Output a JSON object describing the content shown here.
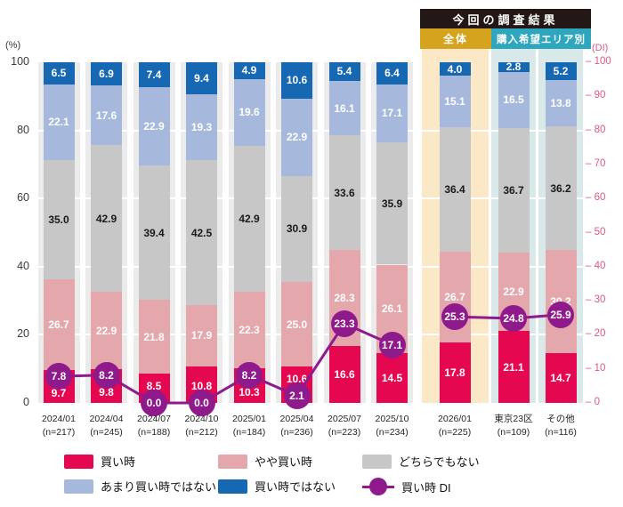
{
  "header": {
    "title": "今回の調査結果",
    "sub_left": "全体",
    "sub_right": "購入希望エリア別"
  },
  "axes": {
    "left_unit": "(%)",
    "left_ticks": [
      100,
      80,
      60,
      40,
      20,
      0
    ],
    "right_unit": "(DI)",
    "right_ticks": [
      100,
      90,
      80,
      70,
      60,
      50,
      40,
      30,
      20,
      10,
      0
    ]
  },
  "legend": [
    {
      "label": "買い時",
      "color": "#E5074F",
      "marker": "swatch"
    },
    {
      "label": "やや買い時",
      "color": "#E3A7AC",
      "marker": "swatch"
    },
    {
      "label": "どちらでもない",
      "color": "#C7C7C7",
      "marker": "swatch"
    },
    {
      "label": "あまり買い時ではない",
      "color": "#A6B9DC",
      "marker": "swatch"
    },
    {
      "label": "買い時ではない",
      "color": "#1568B1",
      "marker": "swatch"
    },
    {
      "label": "買い時 DI",
      "color": "#8E1A8C",
      "marker": "line-circle"
    }
  ],
  "chart_data": {
    "type": "bar",
    "subtype": "stacked-100pct-with-di-line",
    "categories": [
      "2024/01",
      "2024/04",
      "2024/07",
      "2024/10",
      "2025/01",
      "2025/04",
      "2025/07",
      "2025/10",
      "2026/01",
      "東京23区",
      "その他"
    ],
    "category_sublabels": [
      "(n=217)",
      "(n=245)",
      "(n=188)",
      "(n=212)",
      "(n=184)",
      "(n=236)",
      "(n=223)",
      "(n=234)",
      "(n=225)",
      "(n=109)",
      "(n=116)"
    ],
    "category_groups": [
      "time",
      "time",
      "time",
      "time",
      "time",
      "time",
      "time",
      "time",
      "zentai",
      "area",
      "area"
    ],
    "series": [
      {
        "name": "買い時",
        "color": "#E5074F",
        "label_color": "#FFFFFF",
        "values": [
          9.7,
          9.8,
          8.5,
          10.8,
          10.3,
          10.6,
          16.6,
          14.5,
          17.8,
          21.1,
          14.7
        ]
      },
      {
        "name": "やや買い時",
        "color": "#E3A7AC",
        "label_color": "#FFFFFF",
        "values": [
          26.7,
          22.9,
          21.8,
          17.9,
          22.3,
          25.0,
          28.3,
          26.1,
          26.7,
          22.9,
          30.2
        ]
      },
      {
        "name": "どちらでもない",
        "color": "#C7C7C7",
        "label_color": "#1A1A1A",
        "values": [
          35.0,
          42.9,
          39.4,
          42.5,
          42.9,
          30.9,
          33.6,
          35.9,
          36.4,
          36.7,
          36.2
        ]
      },
      {
        "name": "あまり買い時ではない",
        "color": "#A6B9DC",
        "label_color": "#FFFFFF",
        "values": [
          22.1,
          17.6,
          22.9,
          19.3,
          19.6,
          22.9,
          16.1,
          17.1,
          15.1,
          16.5,
          13.8
        ]
      },
      {
        "name": "買い時ではない",
        "color": "#1568B1",
        "label_color": "#FFFFFF",
        "values": [
          6.5,
          6.9,
          7.4,
          9.4,
          4.9,
          10.6,
          5.4,
          6.4,
          4.0,
          2.8,
          5.2
        ]
      }
    ],
    "line_series": {
      "name": "買い時 DI",
      "color": "#8E1A8C",
      "values": [
        7.8,
        8.2,
        0.0,
        0.0,
        8.2,
        2.1,
        23.3,
        17.1,
        25.3,
        24.8,
        25.9
      ],
      "connected_runs": [
        [
          0,
          7
        ],
        [
          8,
          10
        ]
      ]
    },
    "ylim": [
      0,
      100
    ],
    "y2lim": [
      0,
      100
    ],
    "band_colors": {
      "time": "#EBEBEB",
      "zentai": "#FAE8C7",
      "area": "#D9E9E9"
    },
    "gridlines": [
      20,
      40,
      60,
      80
    ],
    "legend_position": "bottom"
  }
}
